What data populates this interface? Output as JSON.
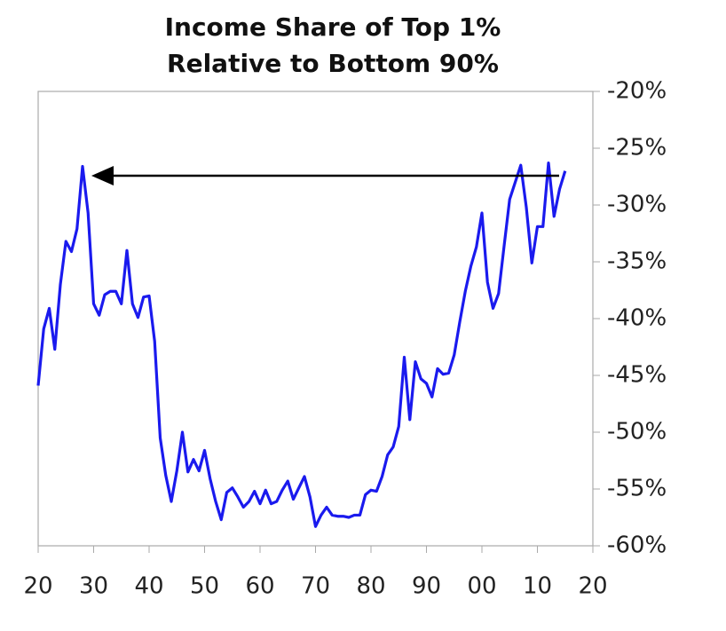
{
  "chart_data": {
    "type": "line",
    "title": [
      "Income Share of Top 1%",
      "Relative to Bottom 90%"
    ],
    "x": [
      1920,
      1921,
      1922,
      1923,
      1924,
      1925,
      1926,
      1927,
      1928,
      1929,
      1930,
      1931,
      1932,
      1933,
      1934,
      1935,
      1936,
      1937,
      1938,
      1939,
      1940,
      1941,
      1942,
      1943,
      1944,
      1945,
      1946,
      1947,
      1948,
      1949,
      1950,
      1951,
      1952,
      1953,
      1954,
      1955,
      1956,
      1957,
      1958,
      1959,
      1960,
      1961,
      1962,
      1963,
      1964,
      1965,
      1966,
      1967,
      1968,
      1969,
      1970,
      1971,
      1972,
      1973,
      1974,
      1975,
      1976,
      1977,
      1978,
      1979,
      1980,
      1981,
      1982,
      1983,
      1984,
      1985,
      1986,
      1987,
      1988,
      1989,
      1990,
      1991,
      1992,
      1993,
      1994,
      1995,
      1996,
      1997,
      1998,
      1999,
      2000,
      2001,
      2002,
      2003,
      2004,
      2005,
      2006,
      2007,
      2008,
      2009,
      2010,
      2011,
      2012,
      2013,
      2014,
      2015
    ],
    "series": [
      {
        "color": "#1a1aee",
        "values": [
          -45.9,
          -40.9,
          -39.1,
          -42.7,
          -37.0,
          -33.2,
          -34.1,
          -32.1,
          -26.6,
          -30.7,
          -38.7,
          -39.7,
          -37.9,
          -37.6,
          -37.6,
          -38.7,
          -34.0,
          -38.7,
          -39.9,
          -38.1,
          -38.0,
          -42.0,
          -50.5,
          -53.8,
          -56.1,
          -53.4,
          -50.0,
          -53.5,
          -52.4,
          -53.4,
          -51.6,
          -54.1,
          -56.1,
          -57.7,
          -55.3,
          -54.9,
          -55.7,
          -56.6,
          -56.1,
          -55.2,
          -56.3,
          -55.1,
          -56.3,
          -56.1,
          -55.1,
          -54.3,
          -55.9,
          -54.9,
          -53.9,
          -55.7,
          -58.3,
          -57.3,
          -56.6,
          -57.3,
          -57.4,
          -57.4,
          -57.5,
          -57.3,
          -57.3,
          -55.5,
          -55.1,
          -55.2,
          -53.9,
          -52.0,
          -51.3,
          -49.5,
          -43.4,
          -48.9,
          -43.8,
          -45.3,
          -45.7,
          -46.9,
          -44.4,
          -44.9,
          -44.8,
          -43.2,
          -40.3,
          -37.6,
          -35.4,
          -33.7,
          -30.7,
          -36.8,
          -39.1,
          -37.8,
          -33.6,
          -29.5,
          -28.0,
          -26.5,
          -30.2,
          -35.1,
          -31.9,
          -31.9,
          -26.3,
          -31.0,
          -28.6,
          -27.0
        ]
      }
    ],
    "xlim": [
      1920,
      2020
    ],
    "xticks": [
      {
        "value": 1920,
        "label": "20"
      },
      {
        "value": 1930,
        "label": "30"
      },
      {
        "value": 1940,
        "label": "40"
      },
      {
        "value": 1950,
        "label": "50"
      },
      {
        "value": 1960,
        "label": "60"
      },
      {
        "value": 1970,
        "label": "70"
      },
      {
        "value": 1980,
        "label": "80"
      },
      {
        "value": 1990,
        "label": "90"
      },
      {
        "value": 2000,
        "label": "00"
      },
      {
        "value": 2010,
        "label": "10"
      },
      {
        "value": 2020,
        "label": "20"
      }
    ],
    "ylim": [
      -60,
      -20
    ],
    "yticks": [
      {
        "value": -20,
        "label": "-20%"
      },
      {
        "value": -25,
        "label": "-25%"
      },
      {
        "value": -30,
        "label": "-30%"
      },
      {
        "value": -35,
        "label": "-35%"
      },
      {
        "value": -40,
        "label": "-40%"
      },
      {
        "value": -45,
        "label": "-45%"
      },
      {
        "value": -50,
        "label": "-50%"
      },
      {
        "value": -55,
        "label": "-55%"
      },
      {
        "value": -60,
        "label": "-60%"
      }
    ]
  }
}
